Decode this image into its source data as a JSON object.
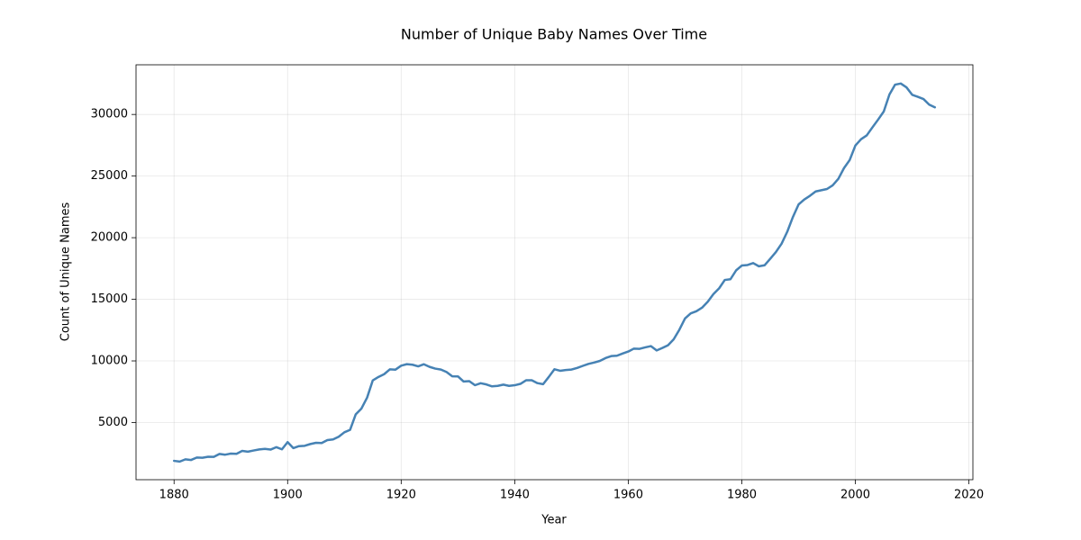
{
  "chart_data": {
    "type": "line",
    "title": "Number of Unique Baby Names Over Time",
    "x_label": "Year",
    "y_label": "Count of Unique Names",
    "x": [
      1880,
      1881,
      1882,
      1883,
      1884,
      1885,
      1886,
      1887,
      1888,
      1889,
      1890,
      1891,
      1892,
      1893,
      1894,
      1895,
      1896,
      1897,
      1898,
      1899,
      1900,
      1901,
      1902,
      1903,
      1904,
      1905,
      1906,
      1907,
      1908,
      1909,
      1910,
      1911,
      1912,
      1913,
      1914,
      1915,
      1916,
      1917,
      1918,
      1919,
      1920,
      1921,
      1922,
      1923,
      1924,
      1925,
      1926,
      1927,
      1928,
      1929,
      1930,
      1931,
      1932,
      1933,
      1934,
      1935,
      1936,
      1937,
      1938,
      1939,
      1940,
      1941,
      1942,
      1943,
      1944,
      1945,
      1946,
      1947,
      1948,
      1949,
      1950,
      1951,
      1952,
      1953,
      1954,
      1955,
      1956,
      1957,
      1958,
      1959,
      1960,
      1961,
      1962,
      1963,
      1964,
      1965,
      1966,
      1967,
      1968,
      1969,
      1970,
      1971,
      1972,
      1973,
      1974,
      1975,
      1976,
      1977,
      1978,
      1979,
      1980,
      1981,
      1982,
      1983,
      1984,
      1985,
      1986,
      1987,
      1988,
      1989,
      1990,
      1991,
      1992,
      1993,
      1994,
      1995,
      1996,
      1997,
      1998,
      1999,
      2000,
      2001,
      2002,
      2003,
      2004,
      2005,
      2006,
      2007,
      2008,
      2009,
      2010,
      2011,
      2012,
      2013,
      2014
    ],
    "values": [
      1889,
      1830,
      2012,
      1962,
      2158,
      2139,
      2225,
      2215,
      2454,
      2390,
      2480,
      2459,
      2696,
      2635,
      2729,
      2818,
      2861,
      2804,
      3001,
      2824,
      3412,
      2925,
      3082,
      3112,
      3254,
      3354,
      3337,
      3575,
      3631,
      3847,
      4208,
      4403,
      5666,
      6133,
      7021,
      8420,
      8698,
      8924,
      9312,
      9293,
      9611,
      9737,
      9690,
      9560,
      9730,
      9517,
      9376,
      9300,
      9096,
      8752,
      8742,
      8326,
      8360,
      8029,
      8190,
      8091,
      7934,
      7973,
      8074,
      7975,
      8025,
      8138,
      8430,
      8429,
      8197,
      8110,
      8700,
      9323,
      9200,
      9260,
      9300,
      9430,
      9600,
      9760,
      9870,
      10000,
      10230,
      10390,
      10420,
      10600,
      10760,
      11000,
      10980,
      11100,
      11200,
      10850,
      11050,
      11270,
      11750,
      12530,
      13450,
      13860,
      14030,
      14320,
      14800,
      15420,
      15890,
      16570,
      16630,
      17350,
      17740,
      17780,
      17940,
      17680,
      17760,
      18290,
      18830,
      19510,
      20480,
      21680,
      22700,
      23100,
      23400,
      23750,
      23850,
      23950,
      24250,
      24780,
      25650,
      26300,
      27480,
      27990,
      28300,
      28950,
      29580,
      30240,
      31620,
      32420,
      32510,
      32200,
      31600,
      31430,
      31250,
      30800,
      30580
    ],
    "color": "#4682b4",
    "xlim": [
      1873.3,
      2020.7
    ],
    "ylim": [
      360,
      34030
    ],
    "xticks": [
      1880,
      1900,
      1920,
      1940,
      1960,
      1980,
      2000,
      2020
    ],
    "yticks": [
      5000,
      10000,
      15000,
      20000,
      25000,
      30000
    ],
    "grid": true
  }
}
